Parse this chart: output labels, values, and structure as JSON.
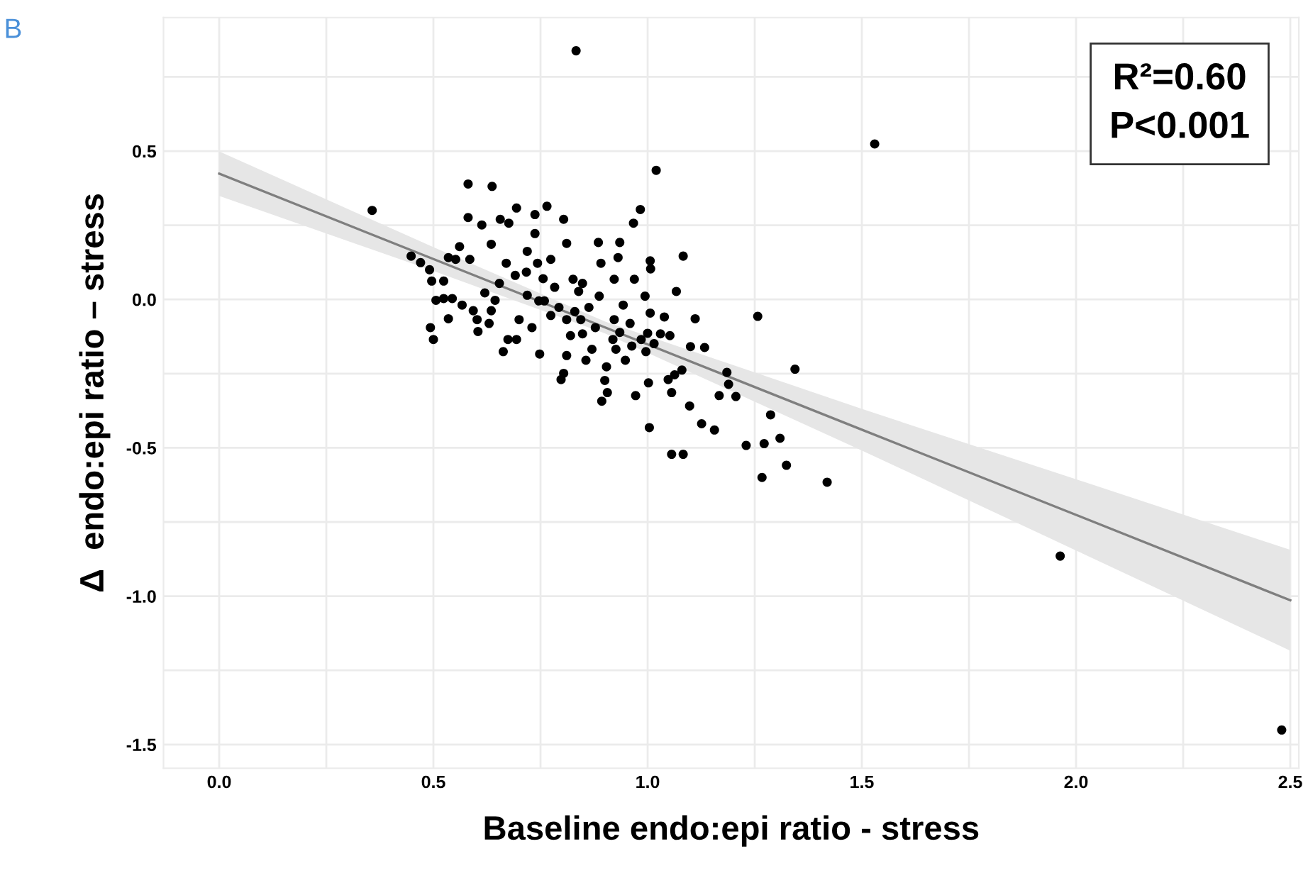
{
  "chart_data": {
    "type": "scatter",
    "xlabel": "Baseline endo:epi ratio - stress",
    "ylabel": "Δ  endo:epi ratio – stress",
    "annotations": [
      "R²=0.60",
      "P<0.001",
      "B"
    ],
    "xlim": [
      -0.13,
      2.52
    ],
    "ylim": [
      -1.58,
      0.95
    ],
    "xticks": [
      {
        "value": 0,
        "label": "0.0"
      },
      {
        "value": 0.25,
        "label": null
      },
      0.5,
      {
        "value": 0.75,
        "label": null
      },
      {
        "value": 1,
        "label": "1.0"
      },
      {
        "value": 1.25,
        "label": null
      },
      1.5,
      {
        "value": 1.75,
        "label": null
      },
      {
        "value": 2,
        "label": "2.0"
      },
      {
        "value": 2.25,
        "label": null
      },
      2.5
    ],
    "yticks": [
      -1.5,
      {
        "value": -1.25,
        "label": null
      },
      {
        "value": -1,
        "label": "-1.0"
      },
      {
        "value": -0.75,
        "label": null
      },
      -0.5,
      {
        "value": -0.25,
        "label": null
      },
      {
        "value": 0,
        "label": "0.0"
      },
      {
        "value": 0.25,
        "label": null
      },
      0.5,
      {
        "value": 0.75,
        "label": null
      }
    ],
    "grid": true,
    "series": [
      {
        "marker": "circle",
        "color": "#000000",
        "x": [
          0.833,
          1.53,
          2.48,
          1.963,
          0.357,
          1.02,
          1.419,
          0.581,
          0.637,
          0.983,
          0.694,
          0.765,
          1.083,
          1.257,
          1.344,
          1.004,
          1.056,
          1.083,
          1.267,
          1.324,
          1.23,
          1.272,
          1.309,
          1.287,
          1.156,
          1.126,
          1.098,
          1.206,
          1.167,
          1.189,
          1.185,
          1.133,
          1.1,
          1.111,
          1.067,
          1.006,
          1.007,
          0.967,
          0.885,
          0.935,
          0.811,
          0.804,
          0.737,
          0.676,
          0.581,
          0.613,
          0.656,
          0.737,
          0.635,
          0.585,
          0.561,
          0.448,
          0.47,
          0.491,
          0.496,
          0.524,
          0.535,
          0.552,
          0.506,
          0.493,
          0.5,
          0.535,
          0.524,
          0.544,
          0.567,
          0.593,
          0.602,
          0.62,
          0.604,
          0.63,
          0.635,
          0.644,
          0.654,
          0.663,
          0.674,
          0.694,
          0.719,
          0.717,
          0.743,
          0.756,
          0.746,
          0.73,
          0.748,
          0.774,
          0.783,
          0.798,
          0.804,
          0.811,
          0.82,
          0.83,
          0.839,
          0.848,
          0.856,
          0.87,
          0.878,
          0.887,
          0.893,
          0.9,
          0.906,
          0.904,
          0.919,
          0.926,
          0.935,
          0.943,
          0.948,
          0.963,
          0.972,
          0.985,
          0.996,
          1.0,
          1.006,
          1.002,
          1.015,
          1.03,
          1.039,
          1.048,
          1.056,
          1.063,
          1.08,
          1.052,
          0.994,
          0.969,
          0.922,
          0.931,
          0.891,
          0.848,
          0.826,
          0.774,
          0.719,
          0.691,
          0.67,
          0.759,
          0.793,
          0.811,
          0.844,
          0.863,
          0.922,
          0.959,
          0.7
        ],
        "values": [
          0.838,
          0.524,
          -1.451,
          -0.865,
          0.3,
          0.435,
          -0.616,
          0.389,
          0.381,
          0.303,
          0.308,
          0.314,
          0.146,
          -0.057,
          -0.235,
          -0.432,
          -0.522,
          -0.522,
          -0.6,
          -0.559,
          -0.492,
          -0.486,
          -0.468,
          -0.389,
          -0.44,
          -0.419,
          -0.359,
          -0.327,
          -0.324,
          -0.286,
          -0.246,
          -0.162,
          -0.159,
          -0.065,
          0.027,
          0.13,
          0.103,
          0.257,
          0.192,
          0.192,
          0.189,
          0.27,
          0.286,
          0.257,
          0.276,
          0.251,
          0.27,
          0.222,
          0.186,
          0.135,
          0.178,
          0.146,
          0.124,
          0.1,
          0.062,
          0.062,
          0.141,
          0.135,
          -0.003,
          -0.095,
          -0.135,
          -0.065,
          0.003,
          0.003,
          -0.019,
          -0.038,
          -0.068,
          0.022,
          -0.108,
          -0.081,
          -0.038,
          -0.003,
          0.054,
          -0.176,
          -0.135,
          -0.135,
          0.014,
          0.092,
          0.122,
          0.07,
          -0.005,
          -0.095,
          -0.184,
          -0.054,
          0.041,
          -0.27,
          -0.249,
          -0.189,
          -0.122,
          -0.041,
          0.027,
          -0.116,
          -0.205,
          -0.168,
          -0.095,
          0.011,
          -0.343,
          -0.273,
          -0.314,
          -0.227,
          -0.135,
          -0.168,
          -0.111,
          -0.019,
          -0.205,
          -0.157,
          -0.324,
          -0.135,
          -0.176,
          -0.114,
          -0.046,
          -0.281,
          -0.149,
          -0.116,
          -0.059,
          -0.27,
          -0.314,
          -0.254,
          -0.238,
          -0.122,
          0.011,
          0.068,
          0.068,
          0.141,
          0.122,
          0.054,
          0.068,
          0.135,
          0.162,
          0.081,
          0.122,
          -0.005,
          -0.027,
          -0.068,
          -0.068,
          -0.027,
          -0.068,
          -0.081,
          -0.068
        ]
      },
      {
        "type": "line",
        "color": "#7f7f7f",
        "x": [
          0.0,
          0.5,
          0.9,
          1.5,
          2.0,
          2.5
        ],
        "values": [
          0.424,
          0.136,
          -0.094,
          -0.439,
          -0.726,
          -1.014
        ],
        "lower": [
          0.349,
          0.096,
          -0.114,
          -0.509,
          -0.846,
          -1.184
        ],
        "upper": [
          0.499,
          0.176,
          -0.074,
          -0.369,
          -0.606,
          -0.844
        ]
      }
    ]
  }
}
